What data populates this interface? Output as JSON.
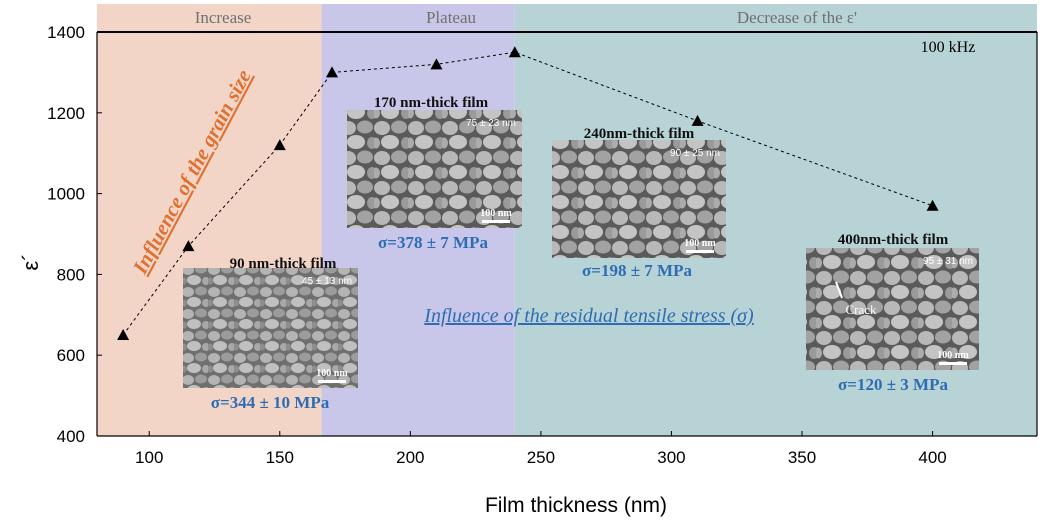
{
  "chart_data": {
    "type": "scatter",
    "xlabel": "Film thickness (nm)",
    "ylabel": "ε´",
    "xlim": [
      80,
      440
    ],
    "ylim": [
      400,
      1400
    ],
    "xticks": [
      100,
      150,
      200,
      250,
      300,
      350,
      400
    ],
    "yticks": [
      400,
      600,
      800,
      1000,
      1200,
      1400
    ],
    "series": [
      {
        "marker": "triangle",
        "line": "dashed",
        "color": "#000000",
        "x": [
          90,
          115,
          150,
          170,
          210,
          240,
          310,
          400
        ],
        "y": [
          650,
          870,
          1120,
          1300,
          1320,
          1350,
          1180,
          970
        ]
      }
    ],
    "regions": [
      {
        "label": "Increase",
        "x_range": [
          80,
          166
        ],
        "color": "#f2d5c7"
      },
      {
        "label": "Plateau",
        "x_range": [
          166,
          240
        ],
        "color": "#c8c7e9"
      },
      {
        "label": "Decrease of the ε'",
        "x_range": [
          240,
          440
        ],
        "color": "#b7d3d5"
      }
    ],
    "annotations": {
      "frequency": "100 kHz",
      "grain_size": "Influence of the grain size",
      "residual_stress": "Influence of the residual tensile stress (σ)"
    },
    "insets": [
      {
        "title": "90 nm-thick film",
        "grain": "45 ± 13 nm",
        "scale": "100 nm",
        "stress": "σ=344 ± 10 MPa"
      },
      {
        "title": "170 nm-thick film",
        "grain": "75 ± 23 nm",
        "scale": "100 nm",
        "stress": "σ=378 ± 7 MPa"
      },
      {
        "title": "240nm-thick film",
        "grain": "90 ± 25 nm",
        "scale": "100 nm",
        "stress": "σ=198 ± 7 MPa"
      },
      {
        "title": "400nm-thick film",
        "grain": "95 ± 31 nm",
        "scale": "100 nm",
        "stress": "σ=120 ± 3 MPa",
        "crack": "Crack"
      }
    ],
    "colors": {
      "grain_annotation": "#e07030",
      "stress_annotation": "#2e6db4",
      "stress_label": "#2e6db4",
      "region_label": "#707070"
    }
  }
}
